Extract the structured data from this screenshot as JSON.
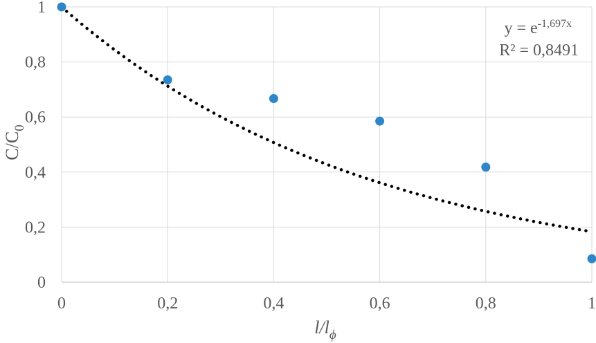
{
  "chart_data": {
    "type": "scatter",
    "title": "",
    "xlabel": {
      "base": "l/l",
      "sub": "ϕ"
    },
    "ylabel": {
      "base": "C/C",
      "sub": "0"
    },
    "xlim": [
      0,
      1
    ],
    "ylim": [
      0,
      1
    ],
    "x_ticks": [
      0,
      0.2,
      0.4,
      0.6,
      0.8,
      1
    ],
    "x_tick_labels": [
      "0",
      "0,2",
      "0,4",
      "0,6",
      "0,8",
      "1"
    ],
    "y_ticks": [
      0,
      0.2,
      0.4,
      0.6,
      0.8,
      1
    ],
    "y_tick_labels": [
      "0",
      "0,2",
      "0,4",
      "0,6",
      "0,8",
      "1"
    ],
    "grid": true,
    "series": [
      {
        "points": [
          {
            "x": 0,
            "y": 1
          },
          {
            "x": 0.2,
            "y": 0.735
          },
          {
            "x": 0.4,
            "y": 0.667
          },
          {
            "x": 0.6,
            "y": 0.585
          },
          {
            "x": 0.8,
            "y": 0.418
          },
          {
            "x": 1,
            "y": 0.085
          }
        ],
        "color": "#2e86c8"
      }
    ],
    "trendline": {
      "type": "exponential",
      "coefficient": 1,
      "exponent": -1.697,
      "style": "dotted",
      "color": "#000000"
    },
    "annotation": {
      "equation_prefix": "y = e",
      "equation_exponent": "-1,697x",
      "r_squared": "R² = 0,8491",
      "position": "top-right"
    }
  }
}
